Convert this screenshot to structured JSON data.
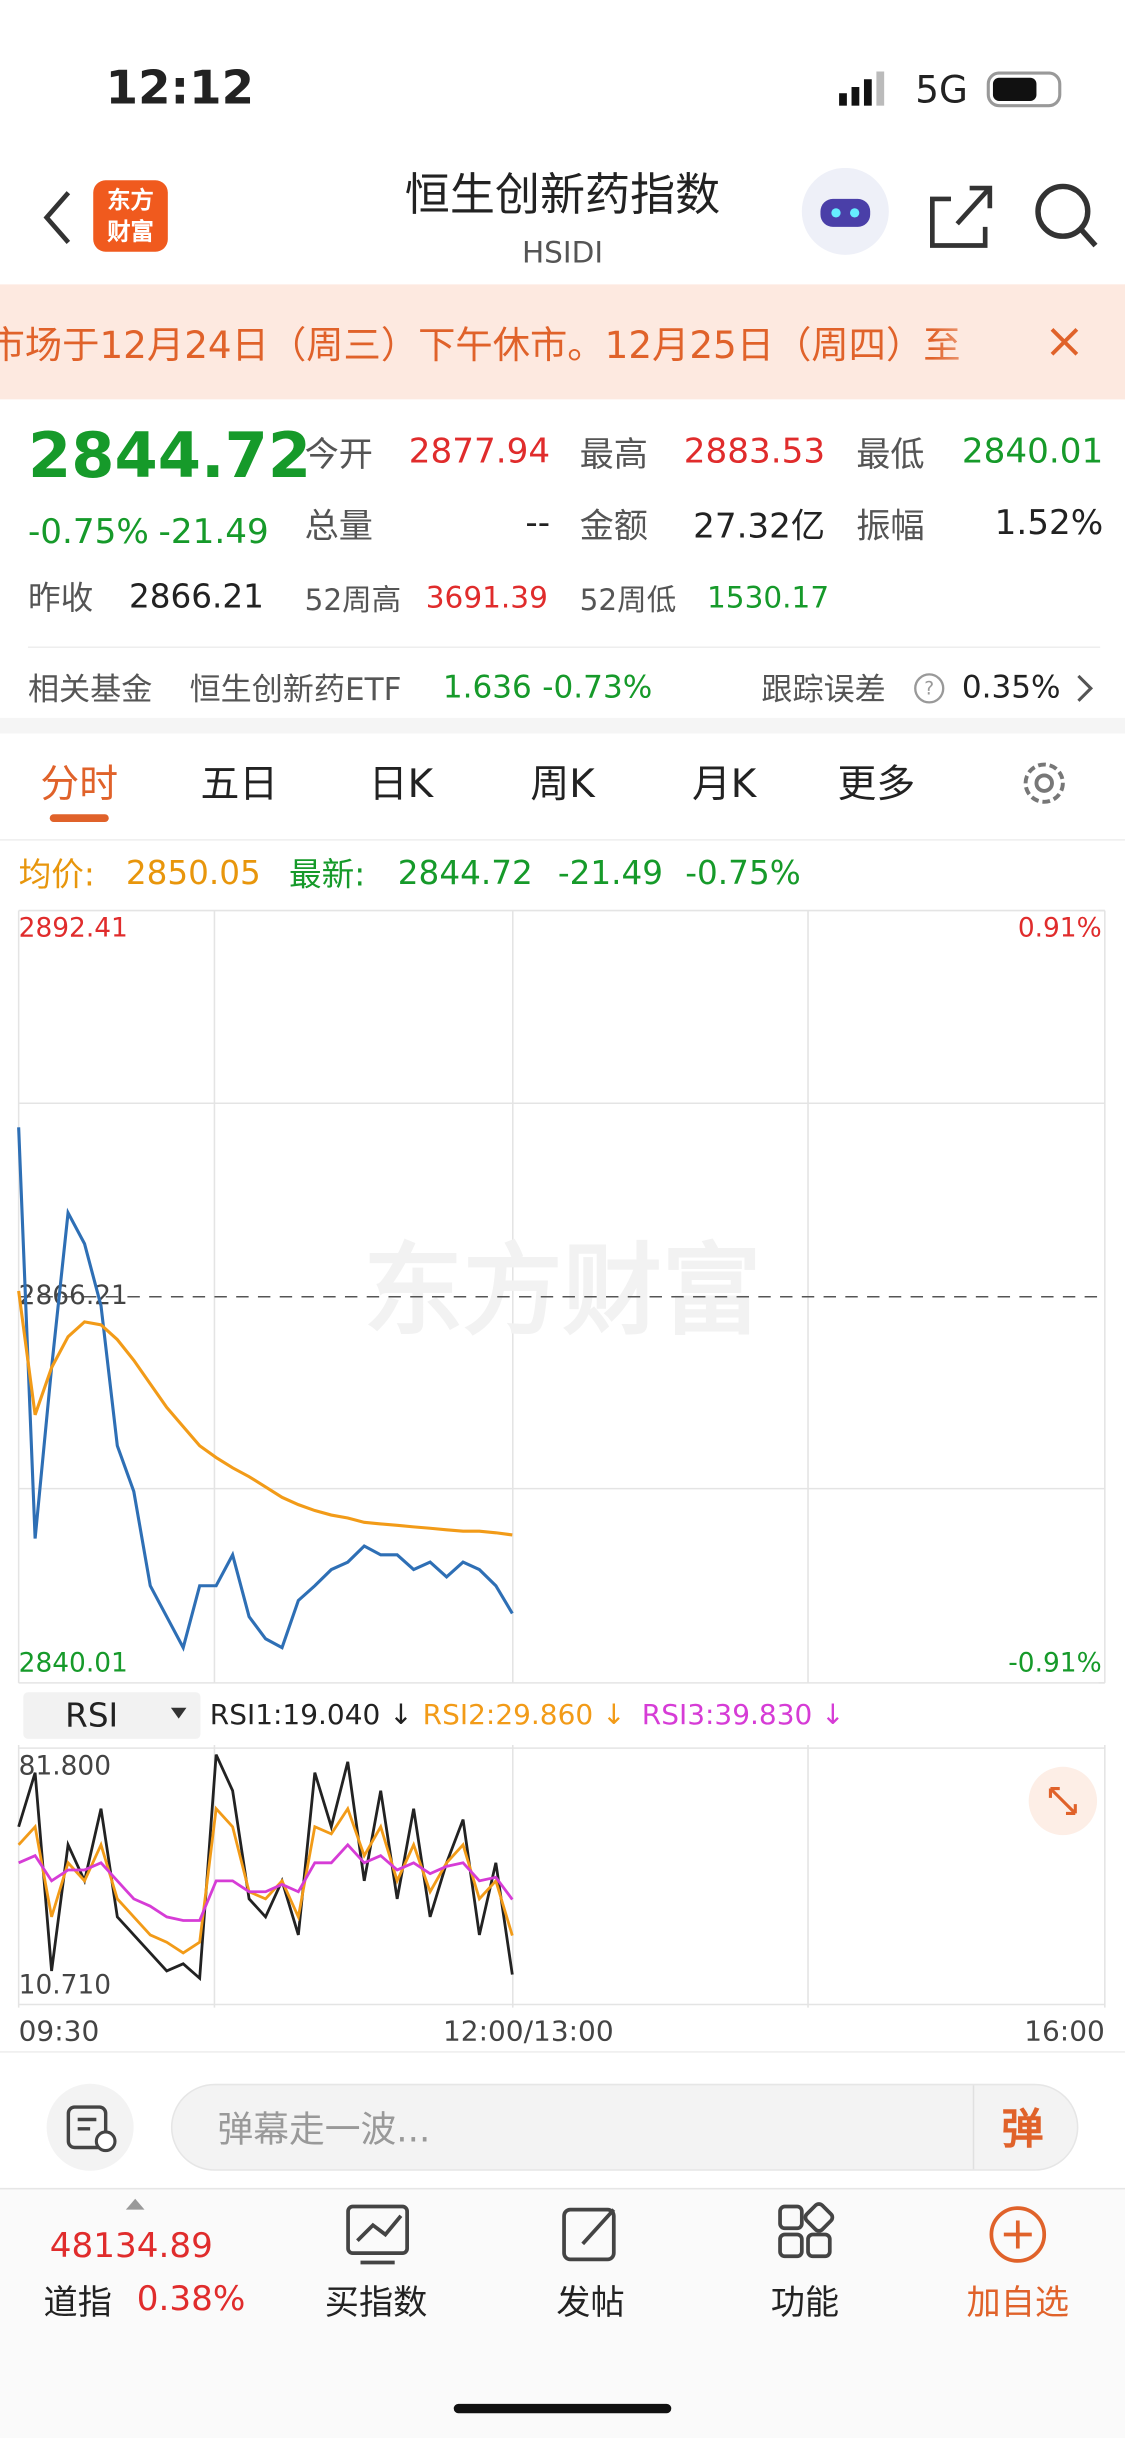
{
  "status_bar": {
    "time": "12:12",
    "network": "5G"
  },
  "header": {
    "title": "恒生创新药指数",
    "code": "HSIDI",
    "logo": [
      "东方",
      "财富"
    ]
  },
  "notice": "市场于12月24日（周三）下午休市。12月25日（周四）至",
  "quote": {
    "price": "2844.72",
    "change_pct": "-0.75%",
    "change": "-21.49",
    "fields": [
      {
        "label": "今开",
        "value": "2877.94"
      },
      {
        "label": "最高",
        "value": "2883.53"
      },
      {
        "label": "最低",
        "value": "2840.01"
      },
      {
        "label": "总量",
        "value": "--"
      },
      {
        "label": "金额",
        "value": "27.32亿"
      },
      {
        "label": "振幅",
        "value": "1.52%"
      },
      {
        "label": "昨收",
        "value": "2866.21"
      },
      {
        "label": "52周高",
        "value": "3691.39"
      },
      {
        "label": "52周低",
        "value": "1530.17"
      }
    ]
  },
  "fund": {
    "label": "相关基金",
    "name": "恒生创新药ETF",
    "price": "1.636",
    "change": "-0.73%",
    "tracking_label": "跟踪误差",
    "tracking": "0.35%"
  },
  "tabs": [
    "分时",
    "五日",
    "日K",
    "周K",
    "月K",
    "更多"
  ],
  "legend": {
    "avg_label": "均价:",
    "avg": "2850.05",
    "latest_label": "最新:",
    "latest": "2844.72",
    "change": "-21.49",
    "pct": "-0.75%"
  },
  "watermark": "东方财富",
  "indicator": {
    "name": "RSI",
    "values": [
      "RSI1:19.040 ↓",
      "RSI2:29.860 ↓",
      "RSI3:39.830 ↓"
    ]
  },
  "chart_data": [
    {
      "type": "line",
      "x": [
        "09:30",
        "09:35",
        "09:40",
        "09:45",
        "09:50",
        "09:55",
        "10:00",
        "10:05",
        "10:10",
        "10:15",
        "10:20",
        "10:25",
        "10:30",
        "10:35",
        "10:40",
        "10:45",
        "10:50",
        "10:55",
        "11:00",
        "11:05",
        "11:10",
        "11:15",
        "11:20",
        "11:25",
        "11:30",
        "11:35",
        "11:40",
        "11:45",
        "11:50",
        "11:55",
        "12:00"
      ],
      "xticks": [
        "09:30",
        "12:00/13:00",
        "16:00"
      ],
      "ylim": [
        2840.01,
        2892.41
      ],
      "yticks": [
        2892.41,
        2866.21,
        2840.01
      ],
      "y2lim": [
        -0.91,
        0.91
      ],
      "y2ticks": [
        {
          "value": 0.91,
          "label": "0.91%"
        },
        {
          "value": -0.91,
          "label": "-0.91%"
        }
      ],
      "series": [
        {
          "color": "#2e6fb5",
          "values": [
            2877.7,
            2849.8,
            2861.4,
            2871.9,
            2869.8,
            2865.6,
            2856.1,
            2853.0,
            2846.6,
            2844.5,
            2842.4,
            2846.6,
            2846.6,
            2848.7,
            2844.5,
            2843.0,
            2842.4,
            2845.6,
            2846.6,
            2847.7,
            2848.2,
            2849.3,
            2848.7,
            2848.7,
            2847.7,
            2848.2,
            2847.2,
            2848.2,
            2847.7,
            2846.6,
            2844.72
          ]
        },
        {
          "color": "#f29b18",
          "values": [
            2866.6,
            2858.2,
            2861.4,
            2863.5,
            2864.5,
            2864.3,
            2863.3,
            2861.9,
            2860.3,
            2858.7,
            2857.4,
            2856.1,
            2855.3,
            2854.6,
            2854.0,
            2853.3,
            2852.6,
            2852.1,
            2851.7,
            2851.4,
            2851.2,
            2850.9,
            2850.8,
            2850.7,
            2850.6,
            2850.5,
            2850.4,
            2850.3,
            2850.3,
            2850.2,
            2850.05
          ]
        }
      ]
    },
    {
      "type": "line",
      "ylim": [
        10.71,
        81.8
      ],
      "yticks": [
        {
          "value": 81.8,
          "label": "81.800"
        },
        {
          "value": 10.71,
          "label": "10.710"
        }
      ],
      "series": [
        {
          "color": "#222222",
          "values": [
            60,
            75,
            20,
            55,
            45,
            65,
            35,
            30,
            25,
            20,
            22,
            18,
            80,
            70,
            40,
            35,
            45,
            30,
            75,
            60,
            78,
            45,
            70,
            40,
            65,
            35,
            50,
            62,
            30,
            50,
            19.04
          ]
        },
        {
          "color": "#f29b18",
          "values": [
            55,
            60,
            35,
            50,
            45,
            55,
            40,
            35,
            30,
            28,
            25,
            28,
            65,
            60,
            42,
            40,
            45,
            35,
            60,
            58,
            65,
            52,
            60,
            45,
            55,
            42,
            50,
            55,
            40,
            45,
            29.86
          ]
        },
        {
          "color": "#d63cd6",
          "values": [
            50,
            52,
            45,
            48,
            48,
            50,
            45,
            40,
            38,
            35,
            34,
            34,
            45,
            45,
            42,
            42,
            44,
            42,
            50,
            50,
            55,
            50,
            52,
            48,
            50,
            47,
            49,
            50,
            45,
            46,
            39.83
          ]
        }
      ]
    }
  ],
  "comment": {
    "placeholder": "弹幕走一波...",
    "button": "弹"
  },
  "nav": {
    "index_value": "48134.89",
    "index_name": "道指",
    "index_change": "0.38%",
    "items": [
      "买指数",
      "发帖",
      "功能",
      "加自选"
    ]
  }
}
